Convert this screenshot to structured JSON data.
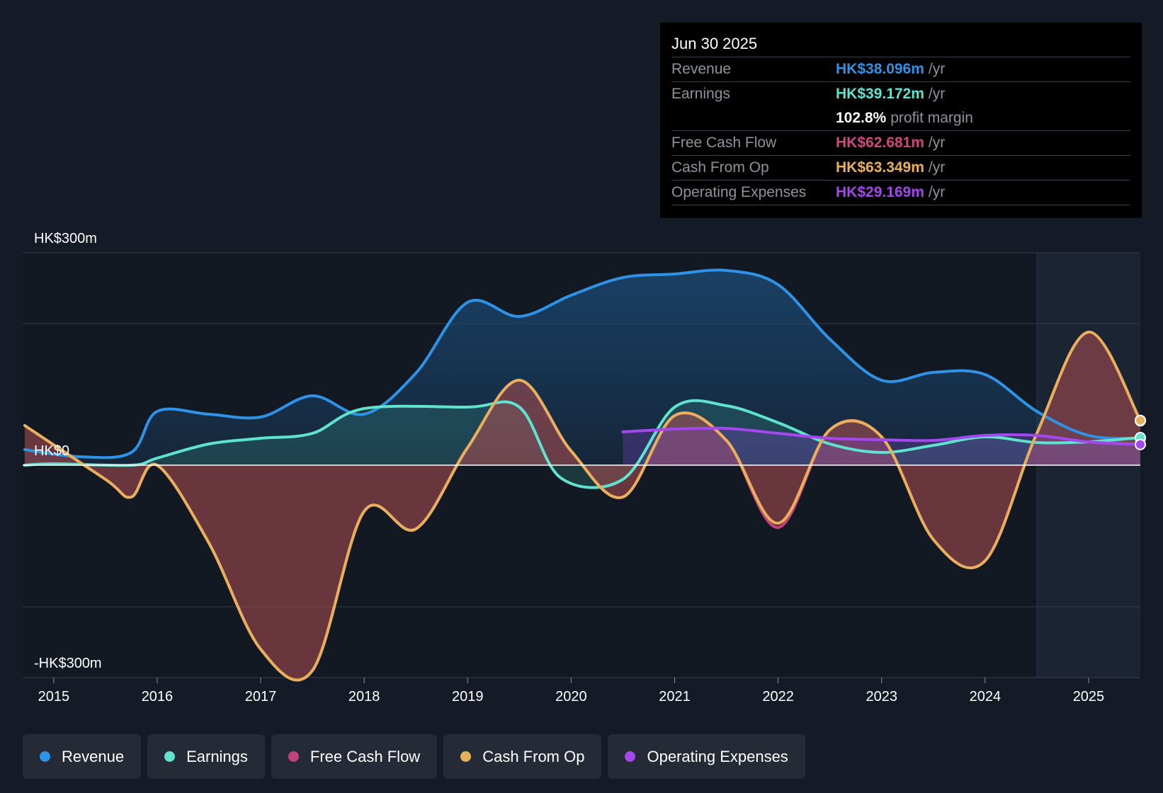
{
  "tooltip": {
    "date": "Jun 30 2025",
    "rows": [
      {
        "label": "Revenue",
        "value": "HK$38.096m",
        "unit": "/yr",
        "color": "#2e93e6"
      },
      {
        "label": "Earnings",
        "value": "HK$39.172m",
        "unit": "/yr",
        "color": "#5fe3cf"
      },
      {
        "label": "",
        "value": "102.8%",
        "unit": "profit margin",
        "color": "#ffffff"
      },
      {
        "label": "Free Cash Flow",
        "value": "HK$62.681m",
        "unit": "/yr",
        "color": "#d2457e"
      },
      {
        "label": "Cash From Op",
        "value": "HK$63.349m",
        "unit": "/yr",
        "color": "#e9b05c"
      },
      {
        "label": "Operating Expenses",
        "value": "HK$29.169m",
        "unit": "/yr",
        "color": "#a447ee"
      }
    ]
  },
  "legend": [
    {
      "label": "Revenue",
      "color": "#2e93e6"
    },
    {
      "label": "Earnings",
      "color": "#5fe3cf"
    },
    {
      "label": "Free Cash Flow",
      "color": "#c2437a"
    },
    {
      "label": "Cash From Op",
      "color": "#e9b05c"
    },
    {
      "label": "Operating Expenses",
      "color": "#a447ee"
    }
  ],
  "chart_data": {
    "type": "area",
    "yunit": "HK$m",
    "ylim": [
      -300,
      300
    ],
    "y_axis_labels": [
      {
        "value": 300,
        "label": "HK$300m"
      },
      {
        "value": 0,
        "label": "HK$0"
      },
      {
        "value": -300,
        "label": "-HK$300m"
      }
    ],
    "gridlines": [
      300,
      200,
      0,
      -200
    ],
    "xlim": [
      2014.7,
      2025.5
    ],
    "x_tick_labels": [
      "2015",
      "2016",
      "2017",
      "2018",
      "2019",
      "2020",
      "2021",
      "2022",
      "2023",
      "2024",
      "2025"
    ],
    "forecast_start": 2024.5,
    "series": [
      {
        "name": "Revenue",
        "color": "#2e93e6",
        "points": [
          [
            2014.72,
            22
          ],
          [
            2015.25,
            12
          ],
          [
            2015.75,
            18
          ],
          [
            2016.0,
            76
          ],
          [
            2016.5,
            72
          ],
          [
            2017.0,
            68
          ],
          [
            2017.5,
            98
          ],
          [
            2018.0,
            72
          ],
          [
            2018.5,
            130
          ],
          [
            2019.0,
            230
          ],
          [
            2019.5,
            210
          ],
          [
            2020.0,
            240
          ],
          [
            2020.5,
            265
          ],
          [
            2021.0,
            270
          ],
          [
            2021.5,
            275
          ],
          [
            2022.0,
            255
          ],
          [
            2022.5,
            178
          ],
          [
            2023.0,
            120
          ],
          [
            2023.5,
            131
          ],
          [
            2024.0,
            128
          ],
          [
            2024.5,
            76
          ],
          [
            2025.0,
            42
          ],
          [
            2025.5,
            38
          ]
        ]
      },
      {
        "name": "Earnings",
        "color": "#5fe3cf",
        "points": [
          [
            2014.72,
            0
          ],
          [
            2015.0,
            2
          ],
          [
            2015.75,
            0
          ],
          [
            2016.0,
            10
          ],
          [
            2016.5,
            30
          ],
          [
            2017.0,
            38
          ],
          [
            2017.5,
            45
          ],
          [
            2018.0,
            80
          ],
          [
            2019.0,
            82
          ],
          [
            2019.5,
            82
          ],
          [
            2019.9,
            -18
          ],
          [
            2020.5,
            -20
          ],
          [
            2021.0,
            82
          ],
          [
            2021.5,
            84
          ],
          [
            2022.0,
            60
          ],
          [
            2022.5,
            30
          ],
          [
            2023.0,
            18
          ],
          [
            2023.5,
            28
          ],
          [
            2024.0,
            40
          ],
          [
            2024.5,
            32
          ],
          [
            2025.0,
            33
          ],
          [
            2025.5,
            39
          ]
        ]
      },
      {
        "name": "Free Cash Flow",
        "color": "#c2437a",
        "points": [
          [
            2014.72,
            56
          ],
          [
            2015.5,
            -20
          ],
          [
            2015.75,
            -45
          ],
          [
            2016.0,
            0
          ],
          [
            2016.5,
            -110
          ],
          [
            2017.0,
            -260
          ],
          [
            2017.5,
            -290
          ],
          [
            2018.0,
            -65
          ],
          [
            2018.5,
            -90
          ],
          [
            2019.0,
            25
          ],
          [
            2019.5,
            120
          ],
          [
            2020.0,
            20
          ],
          [
            2020.5,
            -45
          ],
          [
            2021.0,
            70
          ],
          [
            2021.5,
            35
          ],
          [
            2022.0,
            -88
          ],
          [
            2022.5,
            50
          ],
          [
            2023.0,
            40
          ],
          [
            2023.5,
            -105
          ],
          [
            2024.0,
            -135
          ],
          [
            2024.5,
            45
          ],
          [
            2025.0,
            188
          ],
          [
            2025.5,
            62.7
          ]
        ]
      },
      {
        "name": "Cash From Op",
        "color": "#e9b05c",
        "points": [
          [
            2014.72,
            56
          ],
          [
            2015.5,
            -20
          ],
          [
            2015.75,
            -45
          ],
          [
            2016.0,
            0
          ],
          [
            2016.5,
            -110
          ],
          [
            2017.0,
            -260
          ],
          [
            2017.5,
            -290
          ],
          [
            2018.0,
            -65
          ],
          [
            2018.5,
            -90
          ],
          [
            2019.0,
            25
          ],
          [
            2019.5,
            120
          ],
          [
            2020.0,
            20
          ],
          [
            2020.5,
            -45
          ],
          [
            2021.0,
            70
          ],
          [
            2021.5,
            35
          ],
          [
            2022.0,
            -82
          ],
          [
            2022.5,
            50
          ],
          [
            2023.0,
            40
          ],
          [
            2023.5,
            -105
          ],
          [
            2024.0,
            -135
          ],
          [
            2024.5,
            45
          ],
          [
            2025.0,
            188
          ],
          [
            2025.5,
            63.3
          ]
        ]
      },
      {
        "name": "Operating Expenses",
        "color": "#a447ee",
        "points": [
          [
            2020.5,
            47
          ],
          [
            2021.0,
            51
          ],
          [
            2021.5,
            52
          ],
          [
            2022.0,
            45
          ],
          [
            2022.5,
            38
          ],
          [
            2023.0,
            36
          ],
          [
            2023.5,
            35
          ],
          [
            2024.0,
            42
          ],
          [
            2024.5,
            42
          ],
          [
            2025.0,
            33
          ],
          [
            2025.5,
            29.2
          ]
        ]
      }
    ]
  }
}
